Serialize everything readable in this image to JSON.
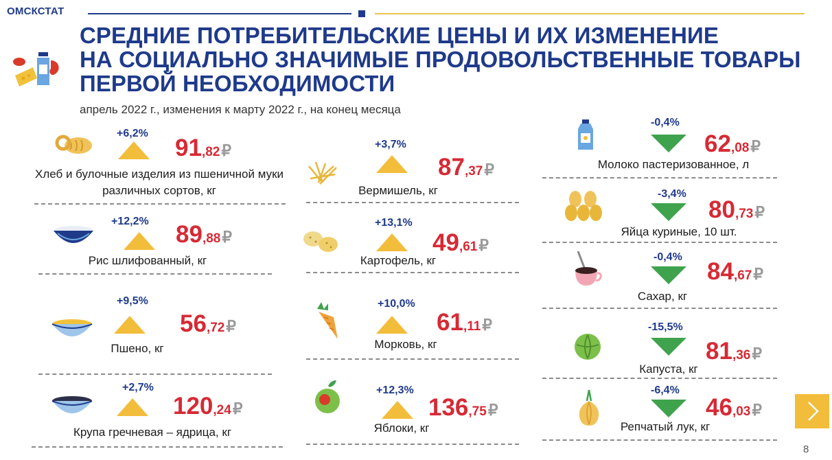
{
  "header": {
    "brand": "ОМСКСТАТ",
    "title_lines": [
      "СРЕДНИЕ ПОТРЕБИТЕЛЬСКИЕ ЦЕНЫ И ИХ ИЗМЕНЕНИЕ",
      "НА СОЦИАЛЬНО ЗНАЧИМЫЕ ПРОДОВОЛЬСТВЕННЫЕ ТОВАРЫ",
      "ПЕРВОЙ НЕОБХОДИМОСТИ"
    ],
    "subtitle": "апрель 2022 г., изменения к марту 2022 г., на конец месяца"
  },
  "currency": "₽",
  "colors": {
    "brand_blue": "#1f3a8a",
    "price_red": "#d62a35",
    "up_triangle": "#f2bd3b",
    "down_triangle": "#3fa34d",
    "accent_gold": "#e6c44c"
  },
  "items": [
    {
      "id": "bread",
      "label": "Хлеб и булочные изделия из пшеничной муки различных сортов, кг",
      "change": "+6,2%",
      "direction": "up",
      "price_int": "91",
      "price_dec": ",82",
      "icon": "bread-icon"
    },
    {
      "id": "rice",
      "label": "Рис шлифованный, кг",
      "change": "+12,2%",
      "direction": "up",
      "price_int": "89",
      "price_dec": ",88",
      "icon": "rice-bowl-icon"
    },
    {
      "id": "millet",
      "label": "Пшено, кг",
      "change": "+9,5%",
      "direction": "up",
      "price_int": "56",
      "price_dec": ",72",
      "icon": "millet-bowl-icon"
    },
    {
      "id": "buckwheat",
      "label": "Крупа гречневая – ядрица, кг",
      "change": "+2,7%",
      "direction": "up",
      "price_int": "120",
      "price_dec": ",24",
      "icon": "buckwheat-bowl-icon"
    },
    {
      "id": "vermicelli",
      "label": "Вермишель, кг",
      "change": "+3,7%",
      "direction": "up",
      "price_int": "87",
      "price_dec": ",37",
      "icon": "vermicelli-icon"
    },
    {
      "id": "potato",
      "label": "Картофель, кг",
      "change": "+13,1%",
      "direction": "up",
      "price_int": "49",
      "price_dec": ",61",
      "icon": "potato-icon"
    },
    {
      "id": "carrot",
      "label": "Морковь, кг",
      "change": "+10,0%",
      "direction": "up",
      "price_int": "61",
      "price_dec": ",11",
      "icon": "carrot-icon"
    },
    {
      "id": "apple",
      "label": "Яблоки, кг",
      "change": "+12,3%",
      "direction": "up",
      "price_int": "136",
      "price_dec": ",75",
      "icon": "apple-icon"
    },
    {
      "id": "milk",
      "label": "Молоко пастеризованное, л",
      "change": "-0,4%",
      "direction": "down",
      "price_int": "62",
      "price_dec": ",08",
      "icon": "milk-bottle-icon"
    },
    {
      "id": "eggs",
      "label": "Яйца куриные, 10 шт.",
      "change": "-3,4%",
      "direction": "down",
      "price_int": "80",
      "price_dec": ",73",
      "icon": "eggs-icon"
    },
    {
      "id": "sugar",
      "label": "Сахар, кг",
      "change": "-0,4%",
      "direction": "down",
      "price_int": "84",
      "price_dec": ",67",
      "icon": "sugar-cup-icon"
    },
    {
      "id": "cabbage",
      "label": "Капуста, кг",
      "change": "-15,5%",
      "direction": "down",
      "price_int": "81",
      "price_dec": ",36",
      "icon": "cabbage-icon"
    },
    {
      "id": "onion",
      "label": "Репчатый лук, кг",
      "change": "-6,4%",
      "direction": "down",
      "price_int": "46",
      "price_dec": ",03",
      "icon": "onion-icon"
    }
  ],
  "navigation": {
    "next_icon": "chevron-right-icon",
    "page_number": "8"
  }
}
